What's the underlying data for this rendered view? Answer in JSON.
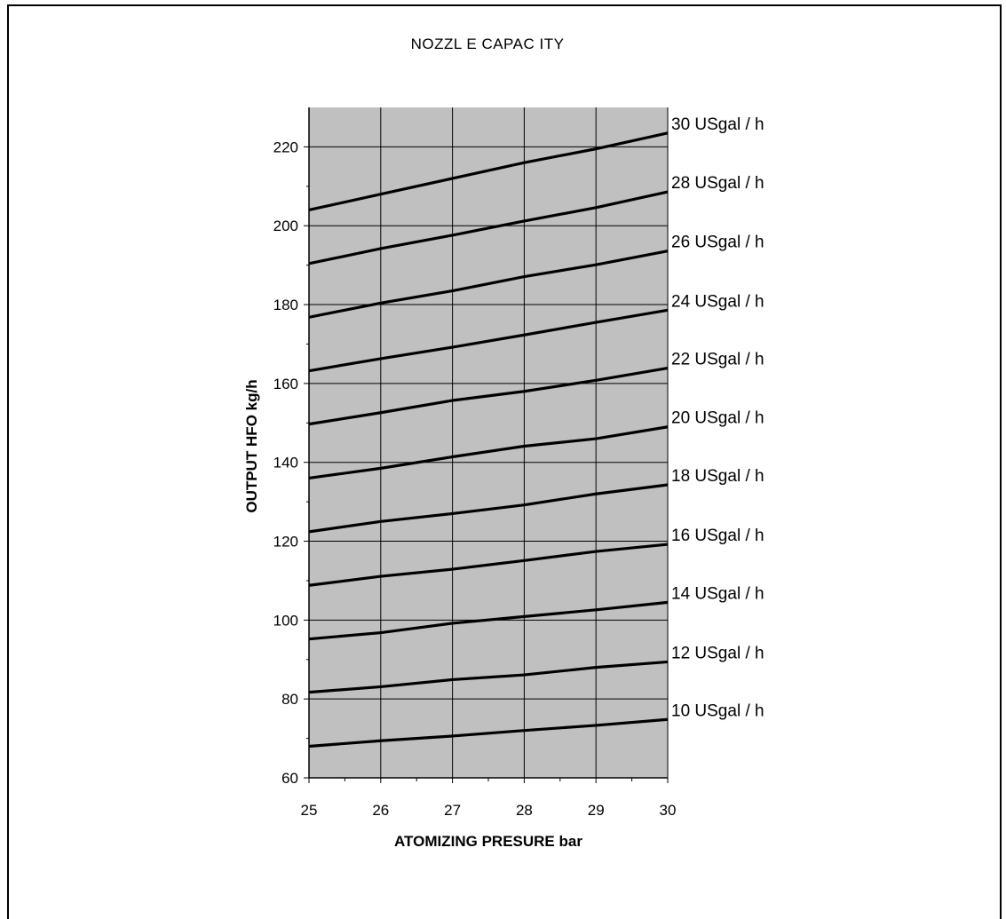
{
  "chart_data": {
    "type": "line",
    "title": "NOZZL E CAPAC ITY",
    "xlabel": "ATOMIZING PRESURE bar",
    "ylabel": "OUTPUT HFO kg/h",
    "xlim": [
      25,
      30
    ],
    "ylim": [
      60,
      230
    ],
    "x_ticks": [
      25,
      26,
      27,
      28,
      29,
      30
    ],
    "y_ticks": [
      60,
      80,
      100,
      120,
      140,
      160,
      180,
      200,
      220
    ],
    "grid": true,
    "plot_background": "#c0c0c0",
    "line_color": "#000000",
    "x": [
      25,
      26,
      27,
      28,
      29,
      30
    ],
    "series": [
      {
        "name": "10 USgal / h",
        "values": [
          68.0,
          69.4,
          70.6,
          72.0,
          73.3,
          74.8
        ]
      },
      {
        "name": "12 USgal / h",
        "values": [
          81.7,
          83.1,
          84.9,
          86.1,
          88.0,
          89.4
        ]
      },
      {
        "name": "14 USgal / h",
        "values": [
          95.2,
          96.8,
          99.2,
          100.9,
          102.6,
          104.5
        ]
      },
      {
        "name": "16 USgal / h",
        "values": [
          108.8,
          111.1,
          112.9,
          115.1,
          117.4,
          119.2
        ]
      },
      {
        "name": "18 USgal / h",
        "values": [
          122.4,
          125.0,
          127.0,
          129.2,
          132.0,
          134.3
        ]
      },
      {
        "name": "20 USgal / h",
        "values": [
          136.0,
          138.5,
          141.4,
          144.1,
          146.0,
          149.0
        ]
      },
      {
        "name": "22 USgal / h",
        "values": [
          149.7,
          152.6,
          155.7,
          158.0,
          160.8,
          163.9
        ]
      },
      {
        "name": "24 USgal / h",
        "values": [
          163.2,
          166.3,
          169.2,
          172.3,
          175.5,
          178.6
        ]
      },
      {
        "name": "26 USgal / h",
        "values": [
          176.8,
          180.4,
          183.5,
          187.1,
          190.1,
          193.6
        ]
      },
      {
        "name": "28 USgal / h",
        "values": [
          190.4,
          194.2,
          197.6,
          201.2,
          204.6,
          208.6
        ]
      },
      {
        "name": "30 USgal / h",
        "values": [
          204.0,
          208.0,
          212.0,
          216.0,
          219.5,
          223.5
        ]
      }
    ]
  }
}
